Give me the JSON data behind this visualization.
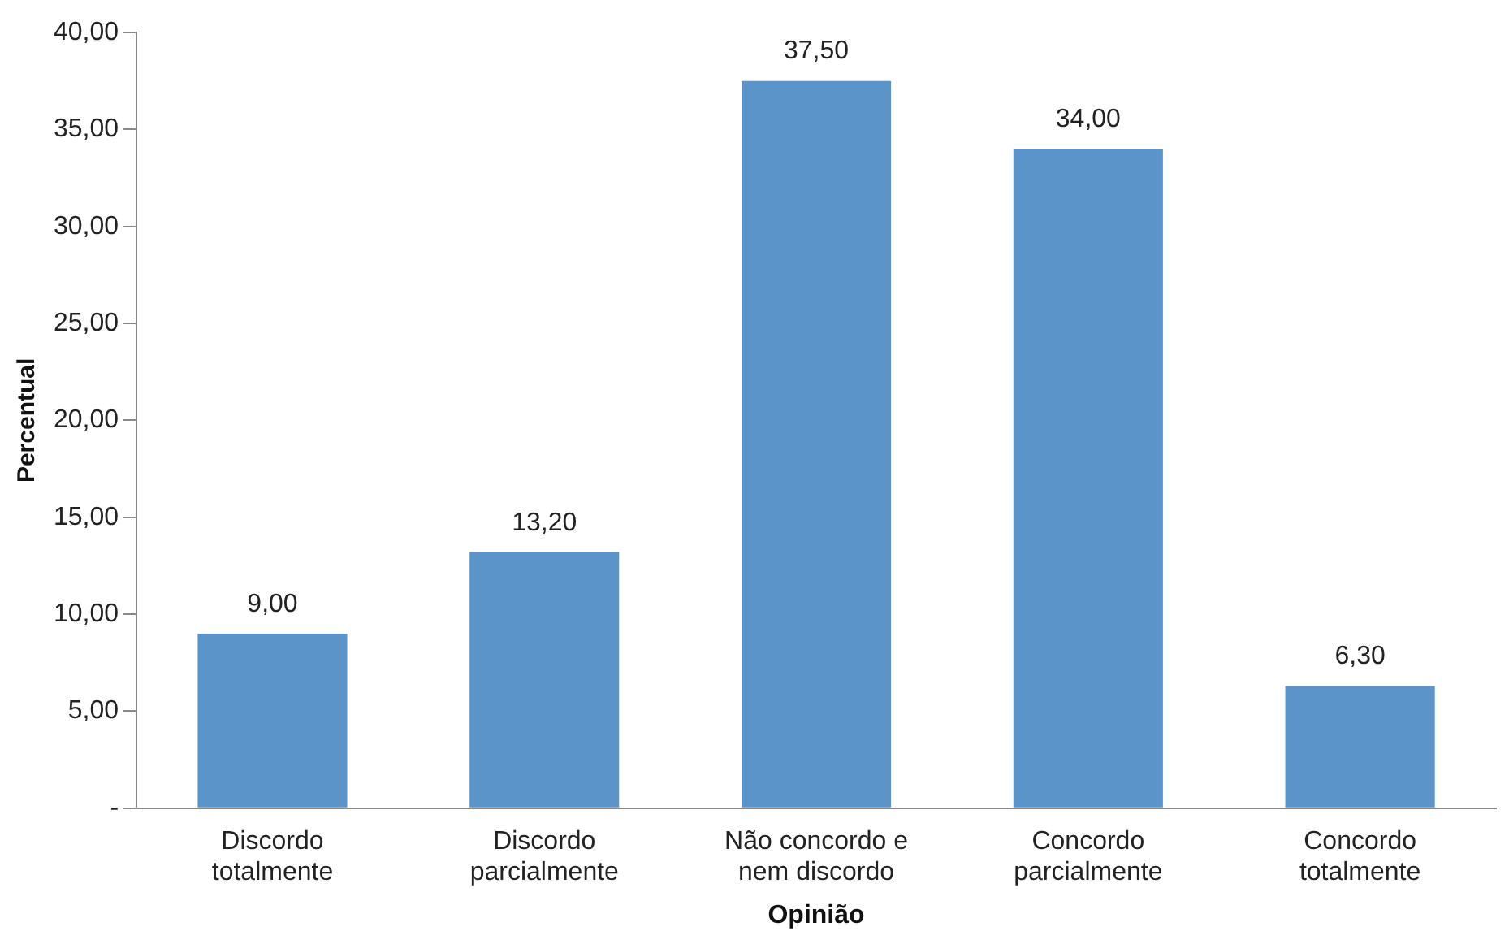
{
  "chart_data": {
    "type": "bar",
    "xlabel": "Opinião",
    "ylabel": "Percentual",
    "categories": [
      "Discordo totalmente",
      "Discordo parcialmente",
      "Não concordo e nem discordo",
      "Concordo parcialmente",
      "Concordo totalmente"
    ],
    "values": [
      9.0,
      13.2,
      37.5,
      34.0,
      6.3
    ],
    "value_labels": [
      "9,00",
      "13,20",
      "37,50",
      "34,00",
      "6,30"
    ],
    "color": "#5b94c9",
    "ylim": [
      0,
      40
    ],
    "yticks": [
      {
        "value": 0,
        "label": "-"
      },
      {
        "value": 5,
        "label": "5,00"
      },
      {
        "value": 10,
        "label": "10,00"
      },
      {
        "value": 15,
        "label": "15,00"
      },
      {
        "value": 20,
        "label": "20,00"
      },
      {
        "value": 25,
        "label": "25,00"
      },
      {
        "value": 30,
        "label": "30,00"
      },
      {
        "value": 35,
        "label": "35,00"
      },
      {
        "value": 40,
        "label": "40,00"
      }
    ],
    "grid": false,
    "legend": false
  }
}
